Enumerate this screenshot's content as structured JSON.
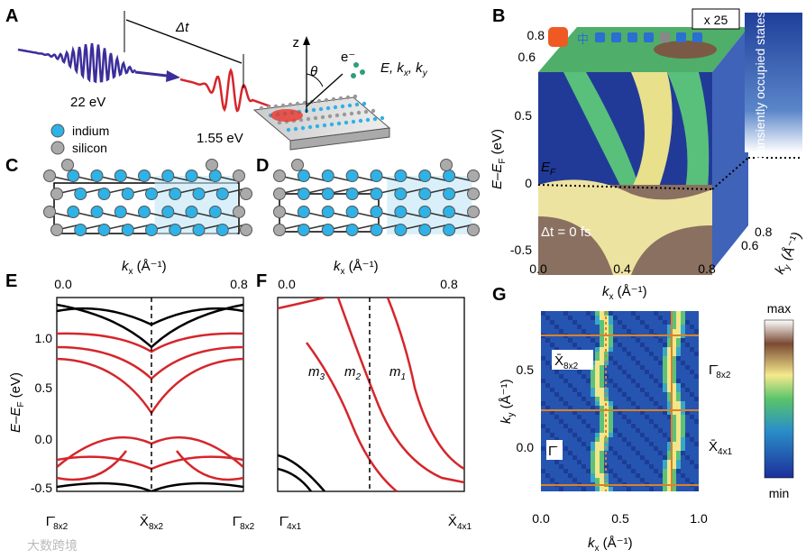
{
  "panels": {
    "A": {
      "label": "A",
      "delta_t": "Δt",
      "photon_probe": "22 eV",
      "photon_pump": "1.55 eV",
      "axis_z": "z",
      "theta": "θ",
      "electron": "e⁻",
      "observables": [
        "E, k",
        "x",
        ", k",
        "y"
      ],
      "legend": [
        "indium",
        "silicon"
      ]
    },
    "B": {
      "label": "B",
      "magnification": "x 25",
      "inset": "transiently occupied states",
      "fermi": [
        "E",
        "F"
      ],
      "delay": "Δt = 0 fs",
      "y_axis": [
        "E–E",
        "F",
        " (eV)"
      ],
      "x_axis": [
        "k",
        "x",
        " (Å⁻¹)"
      ],
      "depth_axis": [
        "k",
        "y",
        " (Å⁻¹)"
      ],
      "y_ticks": [
        "0.5",
        "0",
        "-0.5"
      ],
      "top_ticks": [
        "0.8",
        "0.6"
      ],
      "x_ticks": [
        "0.0",
        "0.4",
        "0.8"
      ],
      "depth_ticks": [
        "0.8",
        "0.6"
      ],
      "toolbar": "中"
    },
    "C": {
      "label": "C",
      "x_axis": [
        "k",
        "x",
        " (Å⁻¹)"
      ]
    },
    "D": {
      "label": "D",
      "x_axis": [
        "k",
        "x",
        " (Å⁻¹)"
      ]
    },
    "E": {
      "label": "E",
      "top_ticks": [
        "0.0",
        "0.8"
      ],
      "y_ticks": [
        "1.0",
        "0.5",
        "0.0",
        "-0.5"
      ],
      "y_axis": [
        "E–E",
        "F",
        " (eV)"
      ],
      "points": [
        [
          "Γ̄",
          "8x2"
        ],
        [
          "X̄",
          "8x2"
        ],
        [
          "Γ̄",
          "8x2"
        ]
      ]
    },
    "F": {
      "label": "F",
      "top_ticks": [
        "0.0",
        "0.8"
      ],
      "bands": [
        [
          "m",
          "3"
        ],
        [
          "m",
          "2"
        ],
        [
          "m",
          "1"
        ]
      ],
      "points": [
        [
          "Γ̄",
          "4x1"
        ],
        [
          "X̄",
          "4x1"
        ]
      ]
    },
    "G": {
      "label": "G",
      "y_ticks": [
        "0.5",
        "0.0"
      ],
      "x_ticks": [
        "0.0",
        "0.5",
        "1.0"
      ],
      "y_axis": [
        "k",
        "y",
        " (Å⁻¹)"
      ],
      "x_axis": [
        "k",
        "x",
        " (Å⁻¹)"
      ],
      "points": [
        [
          "X̄",
          "8x2"
        ],
        [
          "Γ̄",
          ""
        ],
        [
          "Γ̄",
          "8x2"
        ],
        [
          "X̄",
          "4x1"
        ]
      ],
      "colorbar": [
        "max",
        "min"
      ]
    }
  },
  "watermark": "大数跨境"
}
